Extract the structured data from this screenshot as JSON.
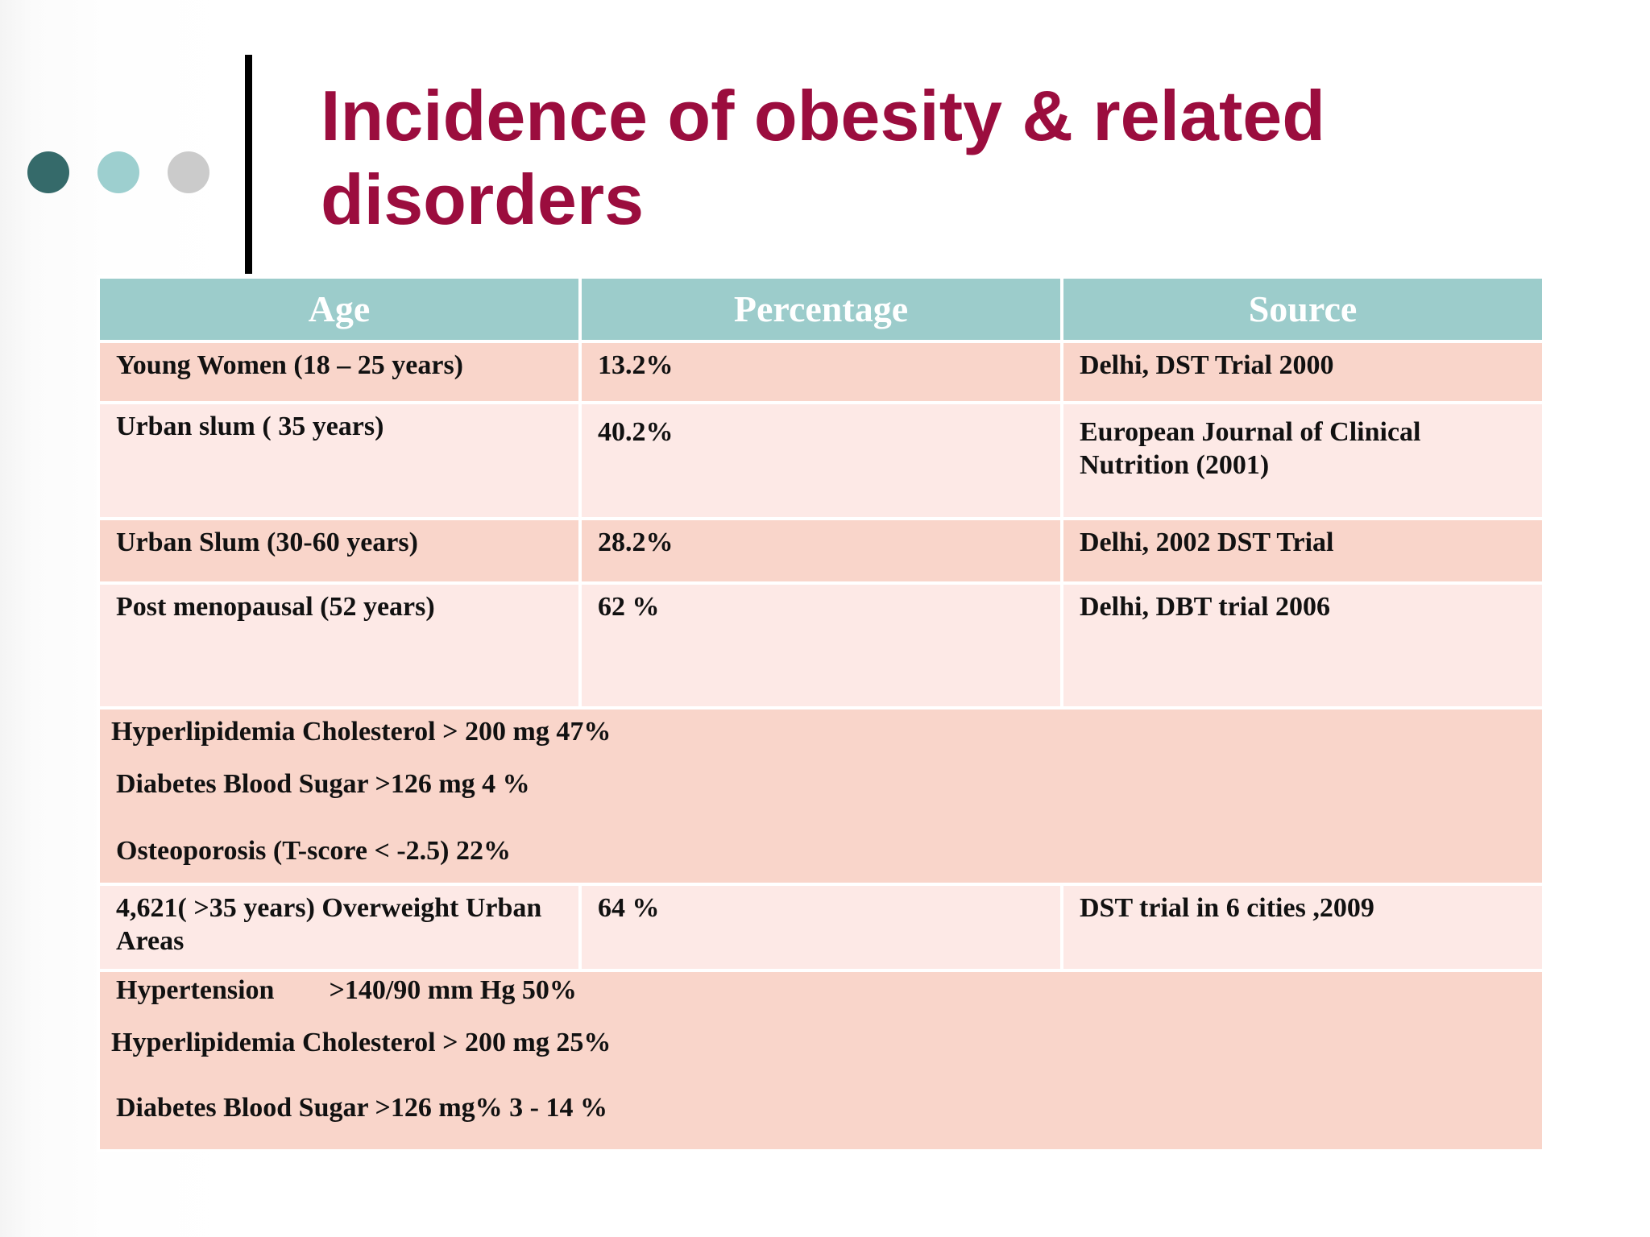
{
  "title": "Incidence of obesity & related disorders",
  "table": {
    "headers": [
      "Age",
      "Percentage",
      "Source"
    ],
    "rows": [
      {
        "age": "Young Women  (18 – 25 years)",
        "percentage": "13.2%",
        "source": "Delhi, DST Trial 2000"
      },
      {
        "age": "Urban slum ( 35 years)",
        "percentage": "40.2%",
        "source": "European Journal of Clinical Nutrition (2001)"
      },
      {
        "age": "Urban Slum  (30-60 years)",
        "percentage": "28.2%",
        "source": "Delhi, 2002 DST Trial"
      },
      {
        "age": "Post menopausal (52 years)",
        "percentage": "62 %",
        "source": "Delhi, DBT trial 2006"
      }
    ],
    "merged_1": [
      "Hyperlipidemia  Cholesterol  > 200 mg 47%",
      "Diabetes Blood Sugar >126 mg 4 %",
      "Osteoporosis  (T-score < -2.5) 22%"
    ],
    "row_5": {
      "age": "4,621( >35 years) Overweight Urban Areas",
      "percentage": "64 %",
      "source": "DST trial in 6 cities ,2009"
    },
    "merged_2": [
      "Hypertension        >140/90 mm Hg 50%",
      "Hyperlipidemia  Cholesterol  > 200 mg 25%",
      "Diabetes Blood Sugar >126 mg% 3 - 14 %"
    ]
  },
  "colors": {
    "title": "#9b0d3e",
    "header_bg": "#9ccccb",
    "row_dark": "#f9d5ca",
    "row_light": "#fde9e6",
    "dot_1": "#356a6a",
    "dot_2": "#9dcfcf",
    "dot_3": "#cbcbcb"
  }
}
